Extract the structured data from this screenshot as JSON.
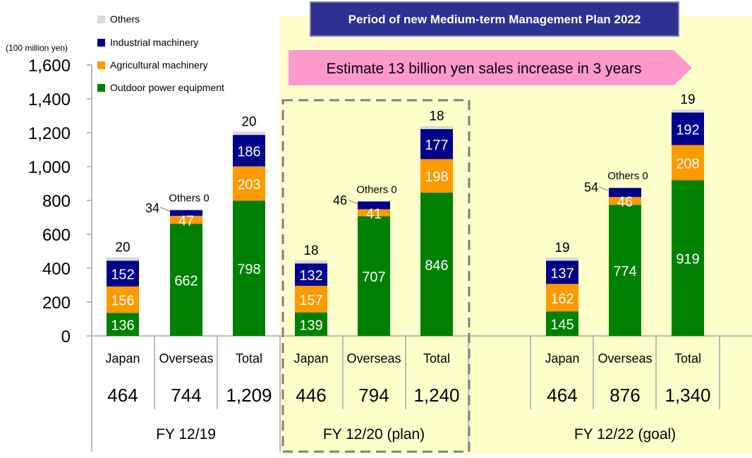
{
  "banner_title": "Period of new Medium-term Management Plan 2022",
  "arrow_text": "Estimate 13 billion yen sales increase in 3 years",
  "legend": [
    {
      "label": "Others",
      "color": "#d9d9d9"
    },
    {
      "label": "Industrial machinery",
      "color": "#00008b"
    },
    {
      "label": "Agricultural machinery",
      "color": "#ff9900"
    },
    {
      "label": "Outdoor power equipment",
      "color": "#008000"
    }
  ],
  "chart_data": {
    "type": "bar",
    "stacked": true,
    "ylabel": "(100 million yen)",
    "ylim": [
      0,
      1600
    ],
    "yticks": [
      "0",
      "200",
      "400",
      "600",
      "800",
      "1,000",
      "1,200",
      "1,400",
      "1,600"
    ],
    "series_order": [
      "Outdoor power equipment",
      "Agricultural machinery",
      "Industrial machinery",
      "Others"
    ],
    "groups": [
      {
        "label": "FY 12/19",
        "bars": [
          {
            "category": "Japan",
            "total_label": "464",
            "outdoor": 136,
            "agri": 156,
            "industrial": 152,
            "others": 20,
            "others_label": "20"
          },
          {
            "category": "Overseas",
            "total_label": "744",
            "outdoor": 662,
            "agri": 47,
            "industrial": 34,
            "others": 0,
            "industrial_label": "34",
            "others_label": "Others 0"
          },
          {
            "category": "Total",
            "total_label": "1,209",
            "outdoor": 798,
            "agri": 203,
            "industrial": 186,
            "others": 20,
            "others_label": "20"
          }
        ]
      },
      {
        "label": "FY 12/20 (plan)",
        "bars": [
          {
            "category": "Japan",
            "total_label": "446",
            "outdoor": 139,
            "agri": 157,
            "industrial": 132,
            "others": 18,
            "others_label": "18"
          },
          {
            "category": "Overseas",
            "total_label": "794",
            "outdoor": 707,
            "agri": 41,
            "industrial": 46,
            "others": 0,
            "industrial_label": "46",
            "others_label": "Others 0"
          },
          {
            "category": "Total",
            "total_label": "1,240",
            "outdoor": 846,
            "agri": 198,
            "industrial": 177,
            "others": 18,
            "others_label": "18"
          }
        ]
      },
      {
        "label": "FY 12/22 (goal)",
        "bars": [
          {
            "category": "Japan",
            "total_label": "464",
            "outdoor": 145,
            "agri": 162,
            "industrial": 137,
            "others": 19,
            "others_label": "19"
          },
          {
            "category": "Overseas",
            "total_label": "876",
            "outdoor": 774,
            "agri": 46,
            "industrial": 54,
            "others": 0,
            "industrial_label": "54",
            "others_label": "Others 0"
          },
          {
            "category": "Total",
            "total_label": "1,340",
            "outdoor": 919,
            "agri": 208,
            "industrial": 192,
            "others": 19,
            "others_label": "19"
          }
        ]
      }
    ]
  }
}
